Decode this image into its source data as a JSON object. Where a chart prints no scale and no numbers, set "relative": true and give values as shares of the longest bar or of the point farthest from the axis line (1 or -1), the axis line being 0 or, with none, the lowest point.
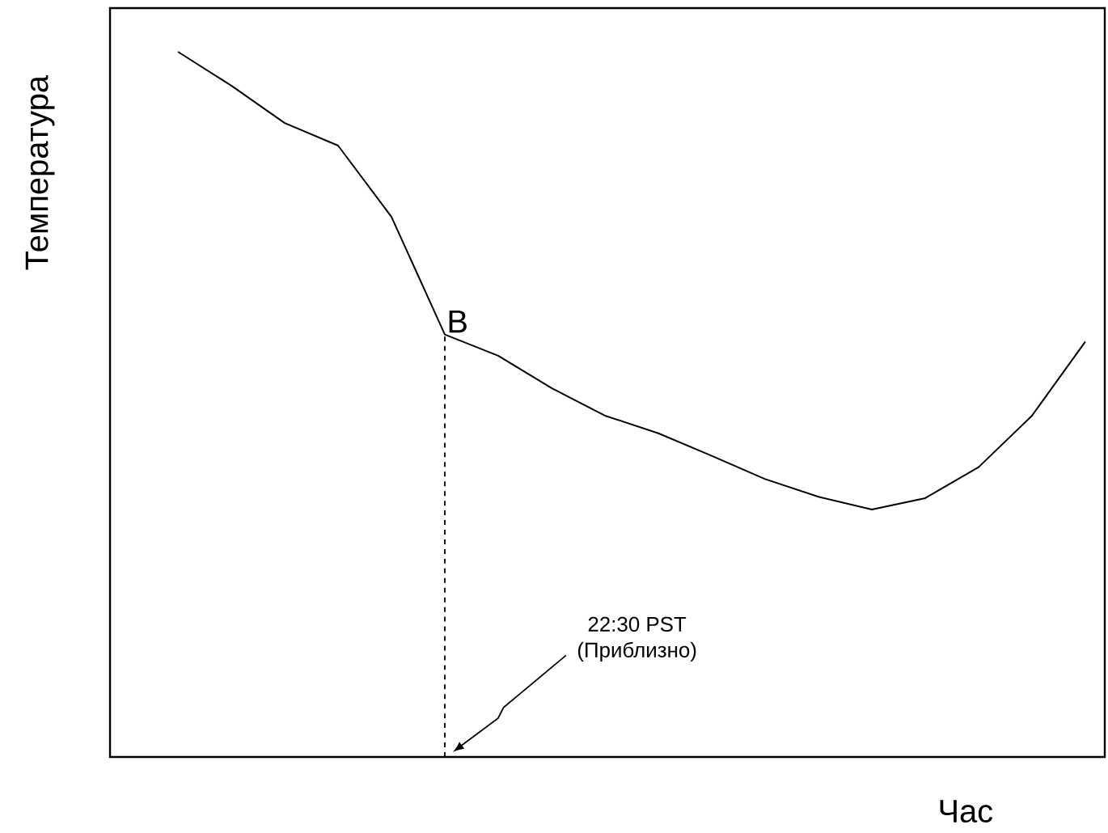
{
  "chart_data": {
    "type": "line",
    "relative": true,
    "xlabel": "Час",
    "ylabel": "Температура",
    "categories": [
      null,
      null,
      null,
      null,
      null,
      null,
      null,
      null,
      null,
      null,
      null,
      null,
      null,
      null,
      null,
      null,
      null,
      null
    ],
    "series": [
      {
        "color": "#000000",
        "values": [
          1.0,
          0.952,
          0.899,
          0.867,
          0.766,
          0.599,
          0.569,
          0.523,
          0.484,
          0.459,
          0.427,
          0.394,
          0.369,
          0.351,
          0.367,
          0.411,
          0.484,
          0.589
        ]
      }
    ],
    "annotations": [
      {
        "text": "B",
        "y": 0.599
      },
      "22:30 PST",
      "(Приблизно)"
    ],
    "marker": "none",
    "line_style": "solid"
  }
}
